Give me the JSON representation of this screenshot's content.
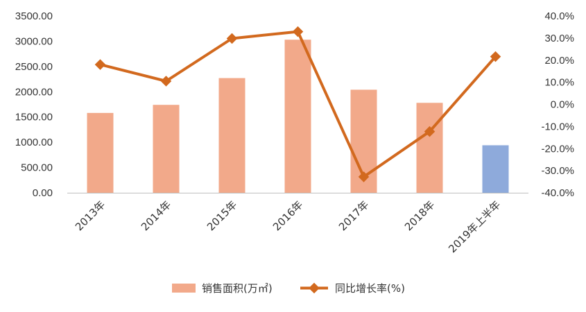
{
  "chart_data": {
    "type": "bar",
    "title": "",
    "categories": [
      "2013年",
      "2014年",
      "2015年",
      "2016年",
      "2017年",
      "2018年",
      "2019年上半年"
    ],
    "y_left": {
      "min": 0,
      "max": 3500,
      "ticks": [
        "0.00",
        "500.00",
        "1000.00",
        "1500.00",
        "2000.00",
        "2500.00",
        "3000.00",
        "3500.00"
      ],
      "tick_values": [
        0,
        500,
        1000,
        1500,
        2000,
        2500,
        3000,
        3500
      ]
    },
    "y_right": {
      "min": -40,
      "max": 40,
      "ticks": [
        "-40.0%",
        "-30.0%",
        "-20.0%",
        "-10.0%",
        "0.0%",
        "10.0%",
        "20.0%",
        "30.0%",
        "40.0%"
      ],
      "tick_values": [
        -40,
        -30,
        -20,
        -10,
        0,
        10,
        20,
        30,
        40
      ]
    },
    "series": [
      {
        "name": "销售面积(万㎡)",
        "type": "bar",
        "axis": "left",
        "values": [
          1580,
          1740,
          2270,
          3030,
          2040,
          1780,
          940
        ],
        "color": "#F2A98A",
        "highlight_color": "#8EAADB",
        "highlight_index": 6
      },
      {
        "name": "同比增长率(%)",
        "type": "line",
        "axis": "right",
        "values": [
          18.0,
          10.5,
          29.8,
          32.9,
          -32.8,
          -12.3,
          21.6
        ],
        "color": "#D2691E"
      }
    ],
    "grid": false,
    "legend": "bottom-center"
  }
}
